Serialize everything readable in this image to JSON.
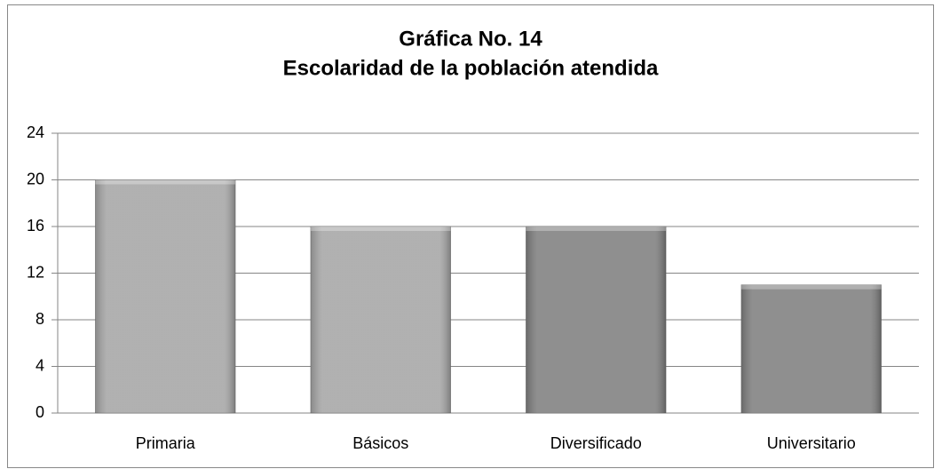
{
  "chart_data": {
    "type": "bar",
    "title": [
      "Gráfica No. 14",
      "Escolaridad de la población atendida"
    ],
    "categories": [
      "Primaria",
      "Básicos",
      "Diversificado",
      "Universitario"
    ],
    "values": [
      20,
      16,
      16,
      11
    ],
    "colors": [
      "#a6a6a6",
      "#a6a6a6",
      "#808080",
      "#808080"
    ],
    "ylim": [
      0,
      24
    ],
    "yticks": [
      0,
      4,
      8,
      12,
      16,
      20,
      24
    ],
    "grid": true
  }
}
